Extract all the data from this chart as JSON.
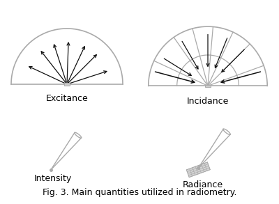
{
  "bg_color": "#ffffff",
  "line_color": "#aaaaaa",
  "arrow_color": "#111111",
  "title": "Fig. 3. Main quantities utilized in radiometry.",
  "title_fontsize": 9,
  "label_fontsize": 9,
  "excitance_label": "Excitance",
  "incidance_label": "Incidance",
  "intensity_label": "Intensity",
  "radiance_label": "Radiance",
  "excitance_angles_deg": [
    155,
    128,
    108,
    88,
    65,
    45,
    18
  ],
  "incidance_sector_angles_deg": [
    20,
    45,
    65,
    85,
    105,
    125,
    155
  ],
  "incidance_arrow_angles_deg": [
    148,
    120,
    90,
    68,
    45
  ],
  "incidance_horiz_arrow_angles_deg": [
    165,
    15
  ]
}
